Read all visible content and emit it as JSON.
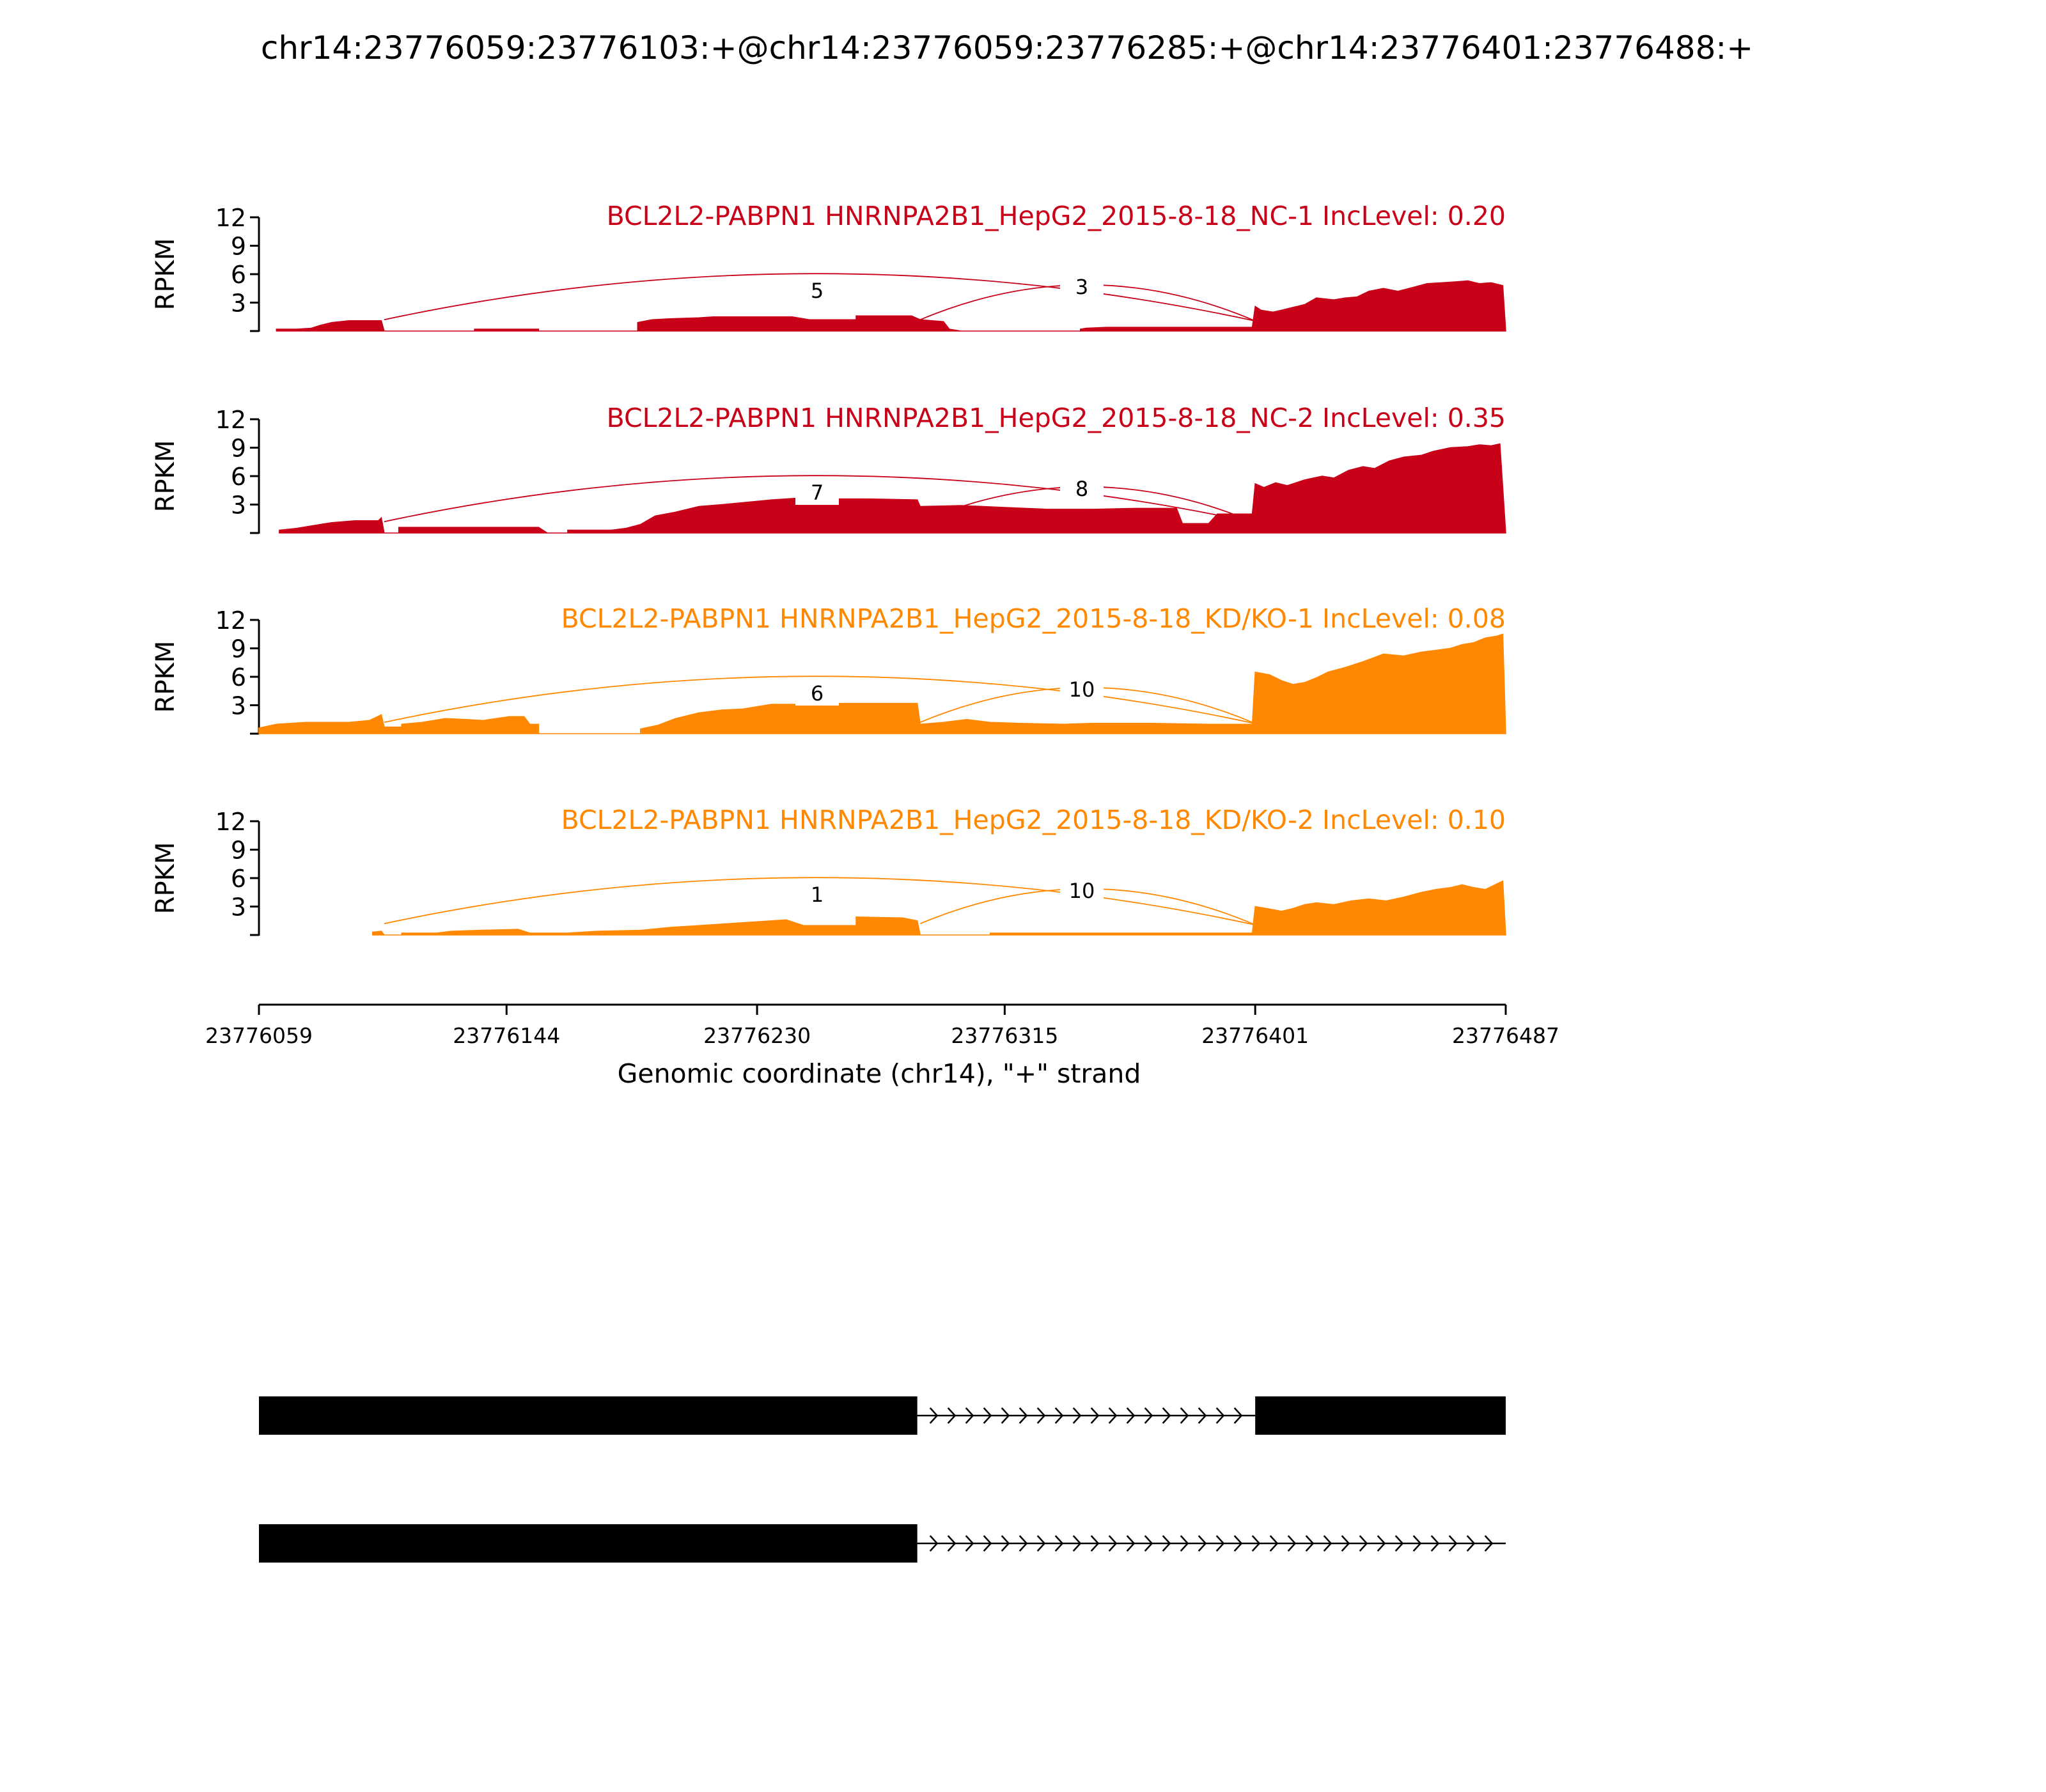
{
  "title": "chr14:23776059:23776103:+@chr14:23776059:23776285:+@chr14:23776401:23776488:+",
  "colors": {
    "nc": "#c80018",
    "kd": "#ff8800",
    "axis": "#000000",
    "gene": "#000000"
  },
  "chart_data": {
    "type": "area",
    "xlabel": "Genomic coordinate (chr14), \"+\" strand",
    "xlim": [
      23776059,
      23776487
    ],
    "xticks": [
      23776059,
      23776144,
      23776230,
      23776315,
      23776401,
      23776487
    ],
    "xtick_labels": [
      "23776059",
      "23776144",
      "23776230",
      "23776315",
      "23776401",
      "23776487"
    ],
    "ylabel": "RPKM",
    "ylim": [
      0,
      12
    ],
    "yticks": [
      3,
      6,
      9,
      12
    ],
    "ytick_labels": [
      "3",
      "6",
      "9",
      "12"
    ],
    "grid": false,
    "panels": [
      {
        "label": "BCL2L2-PABPN1 HNRNPA2B1_HepG2_2015-8-18_NC-1 IncLevel: 0.20",
        "color_key": "nc",
        "coverage": [
          [
            23776065,
            0
          ],
          [
            23776065,
            0.2
          ],
          [
            23776072,
            0.2
          ],
          [
            23776077,
            0.3
          ],
          [
            23776080,
            0.6
          ],
          [
            23776084,
            0.9
          ],
          [
            23776090,
            1.1
          ],
          [
            23776101,
            1.1
          ],
          [
            23776102,
            0
          ],
          [
            23776133,
            0
          ],
          [
            23776133,
            0.2
          ],
          [
            23776155,
            0.2
          ],
          [
            23776155,
            0
          ],
          [
            23776189,
            0
          ],
          [
            23776189,
            0.9
          ],
          [
            23776194,
            1.2
          ],
          [
            23776200,
            1.3
          ],
          [
            23776210,
            1.4
          ],
          [
            23776215,
            1.5
          ],
          [
            23776230,
            1.5
          ],
          [
            23776242,
            1.5
          ],
          [
            23776248,
            1.2
          ],
          [
            23776264,
            1.2
          ],
          [
            23776264,
            1.6
          ],
          [
            23776283,
            1.6
          ],
          [
            23776286,
            1.2
          ],
          [
            23776294,
            1.0
          ],
          [
            23776296,
            0.2
          ],
          [
            23776300,
            0
          ],
          [
            23776341,
            0
          ],
          [
            23776341,
            0.2
          ],
          [
            23776343,
            0.3
          ],
          [
            23776350,
            0.4
          ],
          [
            23776370,
            0.4
          ],
          [
            23776385,
            0.4
          ],
          [
            23776398,
            0.4
          ],
          [
            23776400,
            0.4
          ],
          [
            23776401,
            2.6
          ],
          [
            23776403,
            2.2
          ],
          [
            23776407,
            2.0
          ],
          [
            23776410,
            2.2
          ],
          [
            23776414,
            2.5
          ],
          [
            23776418,
            2.8
          ],
          [
            23776422,
            3.5
          ],
          [
            23776428,
            3.3
          ],
          [
            23776432,
            3.5
          ],
          [
            23776436,
            3.6
          ],
          [
            23776440,
            4.2
          ],
          [
            23776445,
            4.5
          ],
          [
            23776450,
            4.2
          ],
          [
            23776455,
            4.6
          ],
          [
            23776460,
            5.0
          ],
          [
            23776465,
            5.1
          ],
          [
            23776470,
            5.2
          ],
          [
            23776474,
            5.3
          ],
          [
            23776478,
            5.0
          ],
          [
            23776482,
            5.1
          ],
          [
            23776486,
            4.8
          ],
          [
            23776487,
            0
          ]
        ],
        "junctions": [
          {
            "from": 23776102,
            "to": 23776401,
            "count": "5",
            "side": "down"
          },
          {
            "from": 23776286,
            "to": 23776401,
            "count": "3",
            "side": "up"
          }
        ]
      },
      {
        "label": "BCL2L2-PABPN1 HNRNPA2B1_HepG2_2015-8-18_NC-2 IncLevel: 0.35",
        "color_key": "nc",
        "coverage": [
          [
            23776066,
            0
          ],
          [
            23776066,
            0.3
          ],
          [
            23776072,
            0.5
          ],
          [
            23776078,
            0.8
          ],
          [
            23776084,
            1.1
          ],
          [
            23776092,
            1.3
          ],
          [
            23776100,
            1.3
          ],
          [
            23776101,
            1.6
          ],
          [
            23776102,
            0
          ],
          [
            23776107,
            0
          ],
          [
            23776107,
            0.6
          ],
          [
            23776125,
            0.6
          ],
          [
            23776140,
            0.6
          ],
          [
            23776155,
            0.6
          ],
          [
            23776158,
            0
          ],
          [
            23776165,
            0
          ],
          [
            23776165,
            0.3
          ],
          [
            23776180,
            0.3
          ],
          [
            23776185,
            0.5
          ],
          [
            23776190,
            0.9
          ],
          [
            23776195,
            1.8
          ],
          [
            23776202,
            2.2
          ],
          [
            23776210,
            2.8
          ],
          [
            23776218,
            3.0
          ],
          [
            23776225,
            3.2
          ],
          [
            23776235,
            3.5
          ],
          [
            23776245,
            3.7
          ],
          [
            23776255,
            3.6
          ],
          [
            23776268,
            3.6
          ],
          [
            23776285,
            3.5
          ],
          [
            23776286,
            2.8
          ],
          [
            23776300,
            2.9
          ],
          [
            23776315,
            2.7
          ],
          [
            23776330,
            2.5
          ],
          [
            23776345,
            2.5
          ],
          [
            23776360,
            2.6
          ],
          [
            23776374,
            2.6
          ],
          [
            23776376,
            1.0
          ],
          [
            23776385,
            1.0
          ],
          [
            23776388,
            2.0
          ],
          [
            23776400,
            2.0
          ],
          [
            23776401,
            5.2
          ],
          [
            23776404,
            4.8
          ],
          [
            23776408,
            5.3
          ],
          [
            23776412,
            5.0
          ],
          [
            23776418,
            5.6
          ],
          [
            23776424,
            6.0
          ],
          [
            23776428,
            5.8
          ],
          [
            23776433,
            6.6
          ],
          [
            23776438,
            7.0
          ],
          [
            23776442,
            6.8
          ],
          [
            23776447,
            7.6
          ],
          [
            23776452,
            8.0
          ],
          [
            23776458,
            8.2
          ],
          [
            23776462,
            8.6
          ],
          [
            23776468,
            9.0
          ],
          [
            23776474,
            9.1
          ],
          [
            23776478,
            9.3
          ],
          [
            23776482,
            9.2
          ],
          [
            23776485,
            9.4
          ],
          [
            23776487,
            0
          ]
        ],
        "junctions": [
          {
            "from": 23776102,
            "to": 23776401,
            "count": "7",
            "side": "down"
          },
          {
            "from": 23776286,
            "to": 23776401,
            "count": "8",
            "side": "up"
          }
        ]
      },
      {
        "label": "BCL2L2-PABPN1 HNRNPA2B1_HepG2_2015-8-18_KD/KO-1 IncLevel: 0.08",
        "color_key": "kd",
        "coverage": [
          [
            23776059,
            0
          ],
          [
            23776059,
            0.6
          ],
          [
            23776065,
            1.0
          ],
          [
            23776075,
            1.2
          ],
          [
            23776090,
            1.2
          ],
          [
            23776097,
            1.4
          ],
          [
            23776101,
            2.0
          ],
          [
            23776102,
            0.7
          ],
          [
            23776108,
            0.7
          ],
          [
            23776108,
            1.0
          ],
          [
            23776115,
            1.2
          ],
          [
            23776123,
            1.6
          ],
          [
            23776130,
            1.5
          ],
          [
            23776136,
            1.4
          ],
          [
            23776145,
            1.8
          ],
          [
            23776150,
            1.8
          ],
          [
            23776152,
            1.0
          ],
          [
            23776155,
            1.0
          ],
          [
            23776155,
            0
          ],
          [
            23776190,
            0
          ],
          [
            23776190,
            0.5
          ],
          [
            23776196,
            0.9
          ],
          [
            23776202,
            1.6
          ],
          [
            23776210,
            2.2
          ],
          [
            23776218,
            2.5
          ],
          [
            23776225,
            2.6
          ],
          [
            23776235,
            3.1
          ],
          [
            23776245,
            3.1
          ],
          [
            23776260,
            3.2
          ],
          [
            23776285,
            3.2
          ],
          [
            23776286,
            1.0
          ],
          [
            23776294,
            1.2
          ],
          [
            23776302,
            1.5
          ],
          [
            23776310,
            1.2
          ],
          [
            23776320,
            1.1
          ],
          [
            23776335,
            1.0
          ],
          [
            23776345,
            1.1
          ],
          [
            23776365,
            1.1
          ],
          [
            23776385,
            1.0
          ],
          [
            23776400,
            1.0
          ],
          [
            23776401,
            6.5
          ],
          [
            23776406,
            6.2
          ],
          [
            23776410,
            5.6
          ],
          [
            23776414,
            5.2
          ],
          [
            23776418,
            5.4
          ],
          [
            23776422,
            5.9
          ],
          [
            23776426,
            6.5
          ],
          [
            23776432,
            7.0
          ],
          [
            23776438,
            7.6
          ],
          [
            23776445,
            8.4
          ],
          [
            23776452,
            8.2
          ],
          [
            23776458,
            8.6
          ],
          [
            23776463,
            8.8
          ],
          [
            23776468,
            9.0
          ],
          [
            23776472,
            9.4
          ],
          [
            23776476,
            9.6
          ],
          [
            23776480,
            10.1
          ],
          [
            23776484,
            10.3
          ],
          [
            23776486,
            10.5
          ],
          [
            23776487,
            0
          ]
        ],
        "junctions": [
          {
            "from": 23776102,
            "to": 23776401,
            "count": "6",
            "side": "down"
          },
          {
            "from": 23776286,
            "to": 23776401,
            "count": "10",
            "side": "up"
          }
        ]
      },
      {
        "label": "BCL2L2-PABPN1 HNRNPA2B1_HepG2_2015-8-18_KD/KO-2 IncLevel: 0.10",
        "color_key": "kd",
        "coverage": [
          [
            23776098,
            0
          ],
          [
            23776098,
            0.3
          ],
          [
            23776101,
            0.4
          ],
          [
            23776102,
            0
          ],
          [
            23776108,
            0
          ],
          [
            23776108,
            0.2
          ],
          [
            23776120,
            0.2
          ],
          [
            23776125,
            0.4
          ],
          [
            23776135,
            0.5
          ],
          [
            23776148,
            0.6
          ],
          [
            23776152,
            0.2
          ],
          [
            23776165,
            0.2
          ],
          [
            23776175,
            0.4
          ],
          [
            23776190,
            0.5
          ],
          [
            23776200,
            0.8
          ],
          [
            23776210,
            1.0
          ],
          [
            23776220,
            1.2
          ],
          [
            23776230,
            1.4
          ],
          [
            23776240,
            1.6
          ],
          [
            23776246,
            1.0
          ],
          [
            23776264,
            1.0
          ],
          [
            23776264,
            1.9
          ],
          [
            23776280,
            1.8
          ],
          [
            23776285,
            1.5
          ],
          [
            23776286,
            0
          ],
          [
            23776310,
            0
          ],
          [
            23776310,
            0.2
          ],
          [
            23776340,
            0.2
          ],
          [
            23776370,
            0.2
          ],
          [
            23776390,
            0.2
          ],
          [
            23776400,
            0.2
          ],
          [
            23776401,
            3.0
          ],
          [
            23776405,
            2.8
          ],
          [
            23776410,
            2.5
          ],
          [
            23776414,
            2.8
          ],
          [
            23776418,
            3.2
          ],
          [
            23776422,
            3.4
          ],
          [
            23776428,
            3.2
          ],
          [
            23776434,
            3.6
          ],
          [
            23776440,
            3.8
          ],
          [
            23776446,
            3.6
          ],
          [
            23776452,
            4.0
          ],
          [
            23776458,
            4.5
          ],
          [
            23776463,
            4.8
          ],
          [
            23776468,
            5.0
          ],
          [
            23776472,
            5.3
          ],
          [
            23776476,
            5.0
          ],
          [
            23776480,
            4.8
          ],
          [
            23776484,
            5.4
          ],
          [
            23776486,
            5.7
          ],
          [
            23776487,
            0
          ]
        ],
        "junctions": [
          {
            "from": 23776102,
            "to": 23776401,
            "count": "1",
            "side": "down"
          },
          {
            "from": 23776286,
            "to": 23776401,
            "count": "10",
            "side": "up"
          }
        ]
      }
    ]
  },
  "gene_models": [
    {
      "exons": [
        [
          23776059,
          23776285
        ],
        [
          23776401,
          23776487
        ]
      ],
      "intron_start": 23776285,
      "intron_end": 23776401
    },
    {
      "exons": [
        [
          23776059,
          23776285
        ]
      ],
      "intron_start": 23776285,
      "intron_end": 23776487
    }
  ]
}
